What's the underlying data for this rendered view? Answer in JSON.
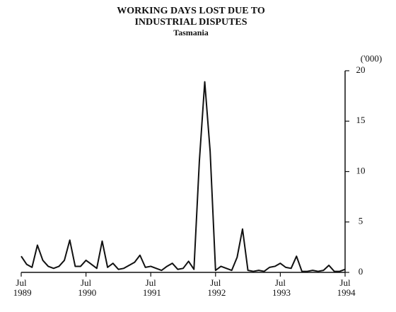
{
  "chart_data": {
    "type": "line",
    "title": "WORKING DAYS LOST DUE TO",
    "title_line2": "INDUSTRIAL DISPUTES",
    "subtitle": "Tasmania",
    "y_unit": "('000)",
    "categories": [
      "Jul 1989",
      null,
      null,
      null,
      null,
      null,
      null,
      null,
      null,
      null,
      null,
      null,
      "Jul 1990",
      null,
      null,
      null,
      null,
      null,
      null,
      null,
      null,
      null,
      null,
      null,
      "Jul 1991",
      null,
      null,
      null,
      null,
      null,
      null,
      null,
      null,
      null,
      null,
      null,
      "Jul 1992",
      null,
      null,
      null,
      null,
      null,
      null,
      null,
      null,
      null,
      null,
      null,
      "Jul 1993",
      null,
      null,
      null,
      null,
      null,
      null,
      null,
      null,
      null,
      null,
      null,
      "Jul 1994"
    ],
    "values": [
      1.6,
      0.8,
      0.5,
      2.7,
      1.2,
      0.6,
      0.4,
      0.6,
      1.2,
      3.2,
      0.6,
      0.6,
      1.2,
      0.8,
      0.4,
      3.1,
      0.5,
      0.9,
      0.3,
      0.4,
      0.7,
      1.0,
      1.7,
      0.5,
      0.6,
      0.4,
      0.2,
      0.6,
      0.9,
      0.3,
      0.4,
      1.1,
      0.3,
      11.0,
      18.9,
      12.0,
      0.2,
      0.6,
      0.4,
      0.2,
      1.5,
      4.3,
      0.2,
      0.1,
      0.2,
      0.1,
      0.5,
      0.6,
      0.9,
      0.5,
      0.4,
      1.6,
      0.1,
      0.1,
      0.2,
      0.1,
      0.2,
      0.7,
      0.1,
      0.1,
      0.3
    ],
    "color": "#111111",
    "ylim": [
      0,
      20
    ],
    "yticks": [
      0,
      5,
      10,
      15,
      20
    ],
    "y_axis_side": "right"
  }
}
